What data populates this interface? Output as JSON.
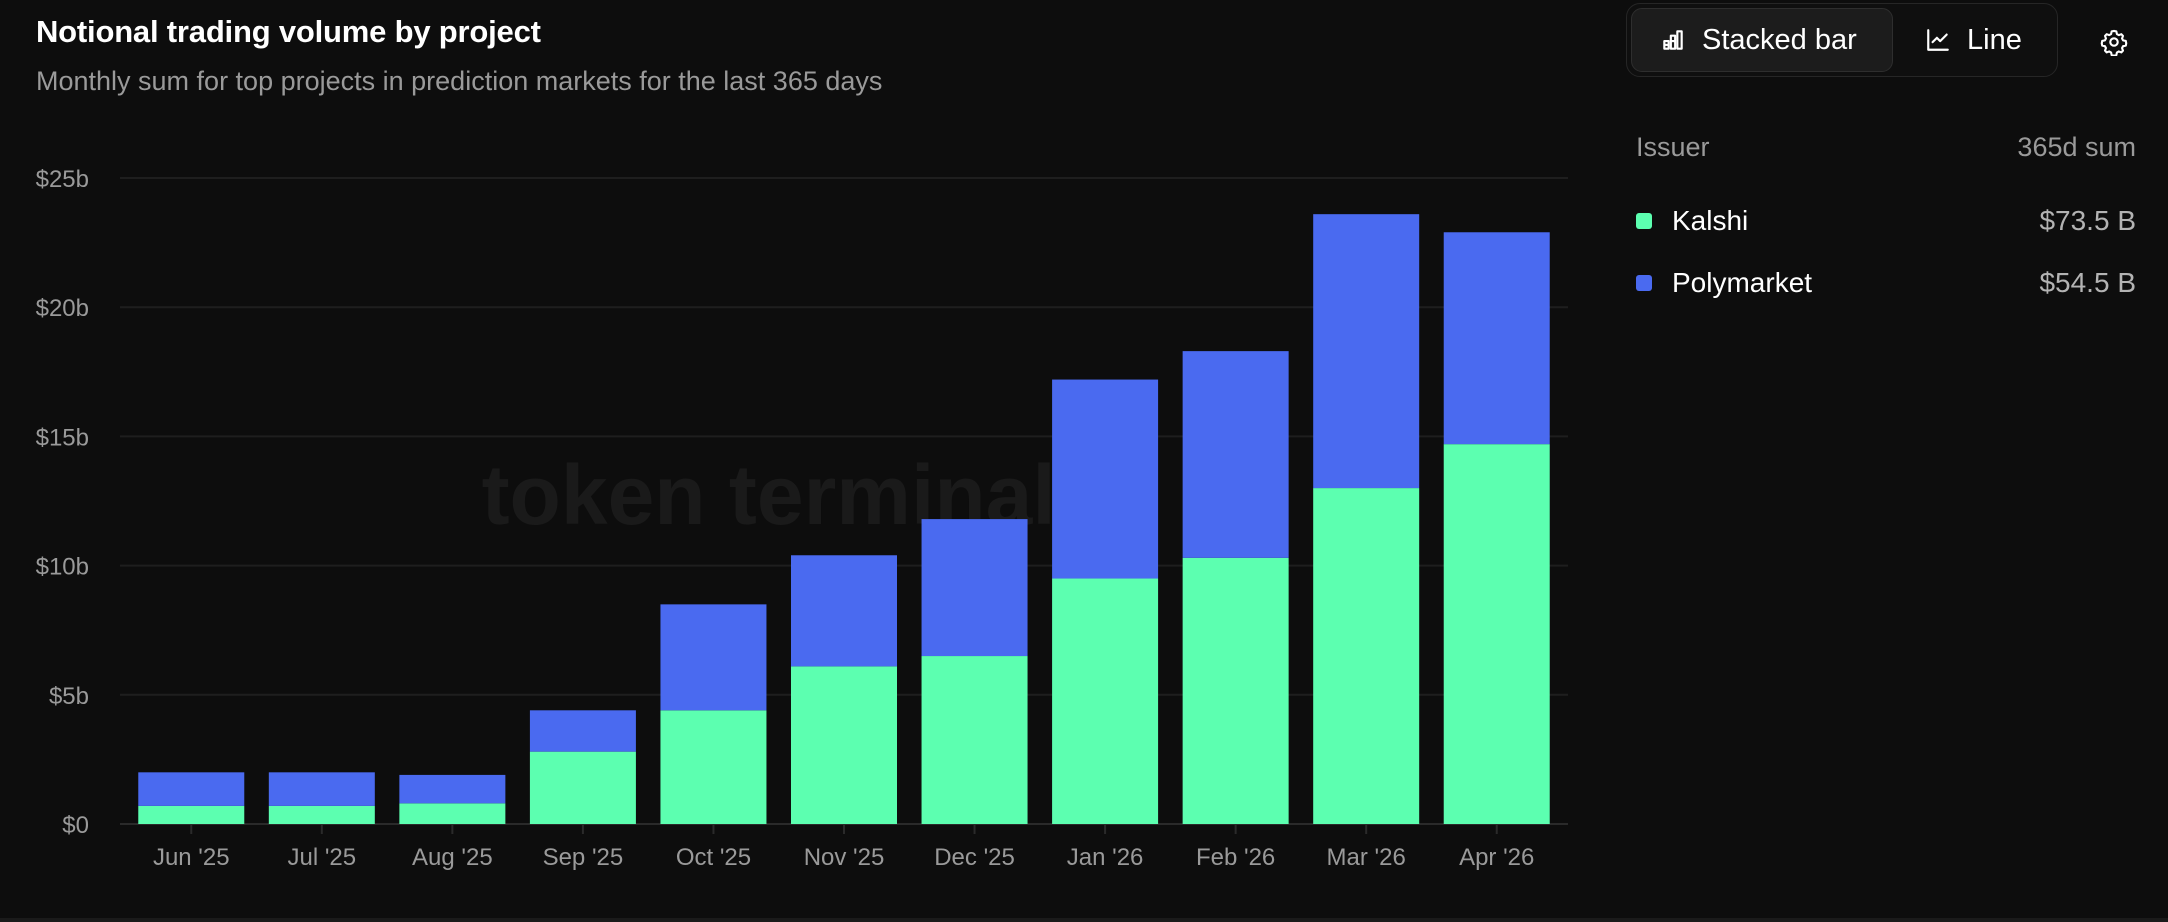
{
  "header": {
    "title": "Notional trading volume by project",
    "subtitle": "Monthly sum for top projects in prediction markets for the last 365 days"
  },
  "toolbar": {
    "stacked_bar_label": "Stacked bar",
    "line_label": "Line"
  },
  "legend": {
    "issuer_header": "Issuer",
    "sum_header": "365d sum",
    "items": [
      {
        "name": "Kalshi",
        "value": "$73.5 B",
        "color": "#5cffb0"
      },
      {
        "name": "Polymarket",
        "value": "$54.5 B",
        "color": "#4a6af0"
      }
    ]
  },
  "watermark": "token terminal_",
  "chart_data": {
    "type": "bar",
    "stacked": true,
    "categories": [
      "Jun '25",
      "Jul '25",
      "Aug '25",
      "Sep '25",
      "Oct '25",
      "Nov '25",
      "Dec '25",
      "Jan '26",
      "Feb '26",
      "Mar '26",
      "Apr '26"
    ],
    "series": [
      {
        "name": "Kalshi",
        "color": "#5cffb0",
        "values": [
          0.7,
          0.7,
          0.8,
          2.8,
          4.4,
          6.1,
          6.5,
          9.5,
          10.3,
          13.0,
          14.7
        ]
      },
      {
        "name": "Polymarket",
        "color": "#4a6af0",
        "values": [
          1.3,
          1.3,
          1.1,
          1.6,
          4.1,
          4.3,
          5.3,
          7.7,
          8.0,
          10.6,
          8.2
        ]
      }
    ],
    "y_ticks": [
      "$0",
      "$5b",
      "$10b",
      "$15b",
      "$20b",
      "$25b"
    ],
    "ylim": [
      0,
      25
    ],
    "grid": true,
    "legend_position": "right"
  }
}
